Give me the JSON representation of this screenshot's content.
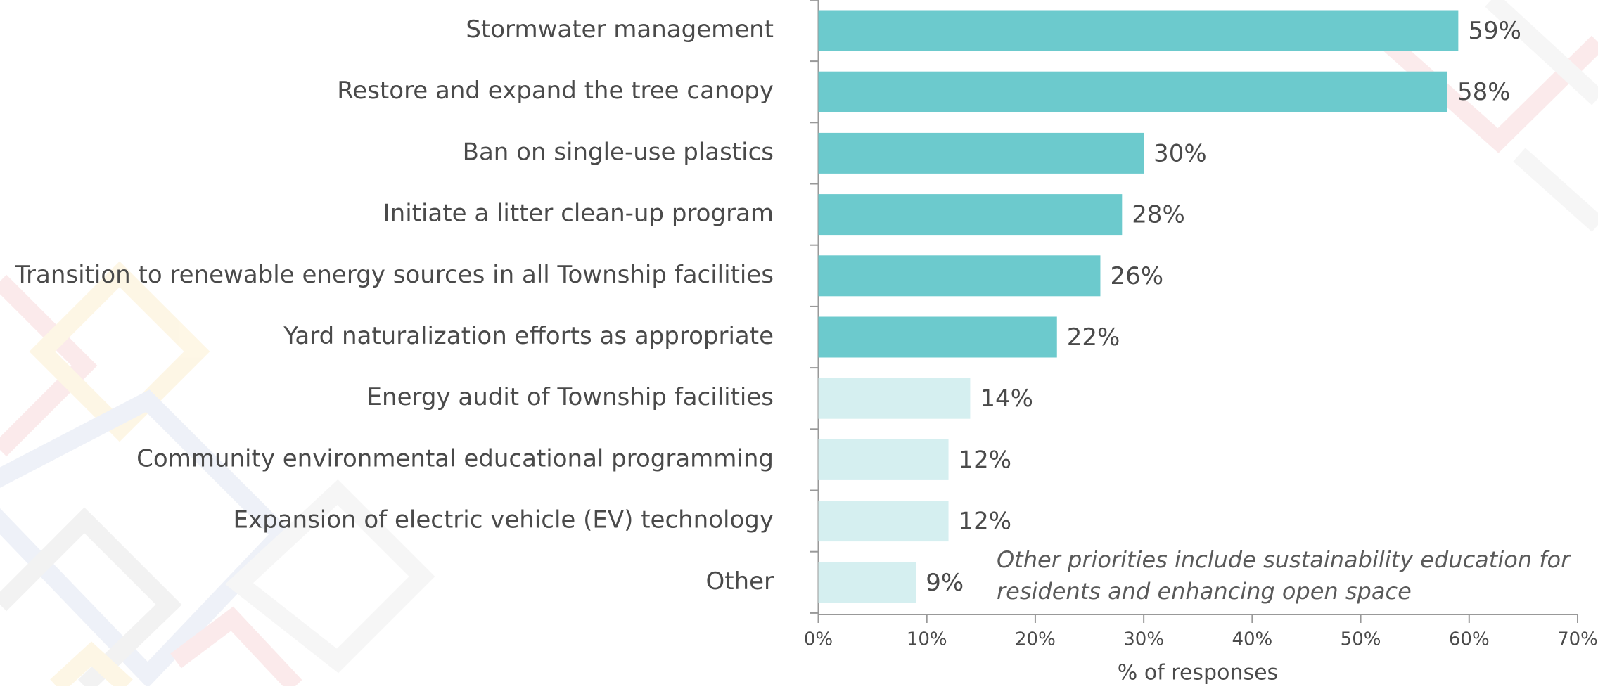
{
  "chart_data": {
    "type": "bar",
    "orientation": "horizontal",
    "categories": [
      "Stormwater management",
      "Restore and expand the tree canopy",
      "Ban on single-use plastics",
      "Initiate a litter clean-up program",
      "Transition to renewable energy sources in all Township facilities",
      "Yard naturalization efforts as appropriate",
      "Energy audit of Township facilities",
      "Community environmental educational programming",
      "Expansion of electric vehicle (EV) technology",
      "Other"
    ],
    "values": [
      59,
      58,
      30,
      28,
      26,
      22,
      14,
      12,
      12,
      9
    ],
    "value_labels": [
      "59%",
      "58%",
      "30%",
      "28%",
      "26%",
      "22%",
      "14%",
      "12%",
      "12%",
      "9%"
    ],
    "colors": [
      "#6ccacd",
      "#6ccacd",
      "#6ccacd",
      "#6ccacd",
      "#6ccacd",
      "#6ccacd",
      "#d5eff0",
      "#d5eff0",
      "#d5eff0",
      "#d5eff0"
    ],
    "xlim": [
      0,
      70
    ],
    "xticks": [
      {
        "value": 0,
        "label": "0%"
      },
      {
        "value": 10,
        "label": "10%"
      },
      {
        "value": 20,
        "label": "20%"
      },
      {
        "value": 30,
        "label": "30%"
      },
      {
        "value": 40,
        "label": "40%"
      },
      {
        "value": 50,
        "label": "50%"
      },
      {
        "value": 60,
        "label": "60%"
      },
      {
        "value": 70,
        "label": "70%"
      }
    ],
    "xlabel": "% of responses",
    "annotation": [
      "Other priorities include sustainability education for",
      "residents and enhancing open space"
    ]
  }
}
